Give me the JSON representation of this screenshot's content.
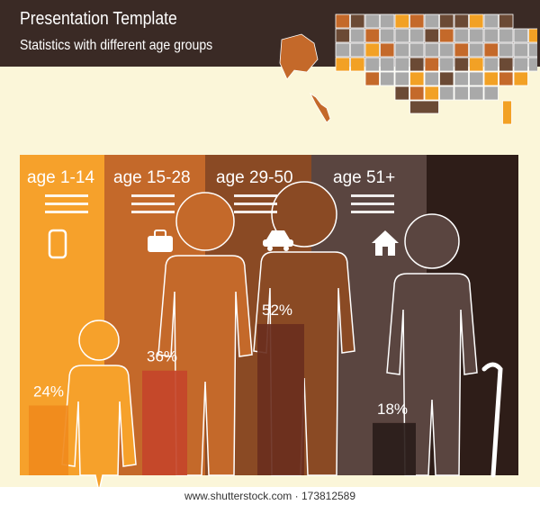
{
  "header": {
    "title": "Presentation Template",
    "subtitle": "Statistics with different age groups"
  },
  "chart_data": {
    "type": "bar",
    "categories": [
      "age 1-14",
      "age 15-28",
      "age 29-50",
      "age 51+"
    ],
    "values": [
      24,
      36,
      52,
      18
    ],
    "value_labels": [
      "24%",
      "36%",
      "52%",
      "18%"
    ],
    "ylim": [
      0,
      100
    ],
    "xlabel": "",
    "ylabel": ""
  },
  "groups": [
    {
      "label": "age 1-14",
      "icon": "smartphone-icon",
      "panel_color": "#f6a12b",
      "bar_color": "#f08a1c",
      "text_color": "#ffffff"
    },
    {
      "label": "age 15-28",
      "icon": "briefcase-icon",
      "panel_color": "#c4692a",
      "bar_color": "#c4452a",
      "text_color": "#ffffff"
    },
    {
      "label": "age 29-50",
      "icon": "car-icon",
      "panel_color": "#8a4a24",
      "bar_color": "#6a2e1e",
      "text_color": "#ffffff"
    },
    {
      "label": "age 51+",
      "icon": "house-icon",
      "panel_color": "#5a4540",
      "bar_color": "#2a1d1a",
      "text_color": "#ffffff"
    }
  ],
  "colors": {
    "header_bg": "#3a2a25",
    "page_bg": "#fbf6d9",
    "last_panel": "#2e1d18",
    "map_gray": "#a9a9a9",
    "map_orange": "#f2a125",
    "map_rust": "#c4692a",
    "map_brown": "#6b4a35"
  },
  "footer": {
    "watermark": "www.shutterstock.com · 173812589"
  }
}
